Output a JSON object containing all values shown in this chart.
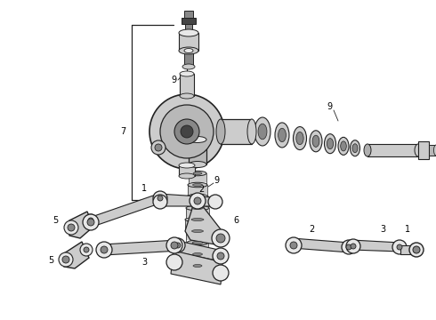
{
  "bg_color": "#ffffff",
  "fig_width": 4.9,
  "fig_height": 3.6,
  "dpi": 100,
  "line_color": "#222222",
  "dark_gray": "#444444",
  "mid_gray": "#888888",
  "light_gray": "#cccccc",
  "very_light_gray": "#e8e8e8"
}
